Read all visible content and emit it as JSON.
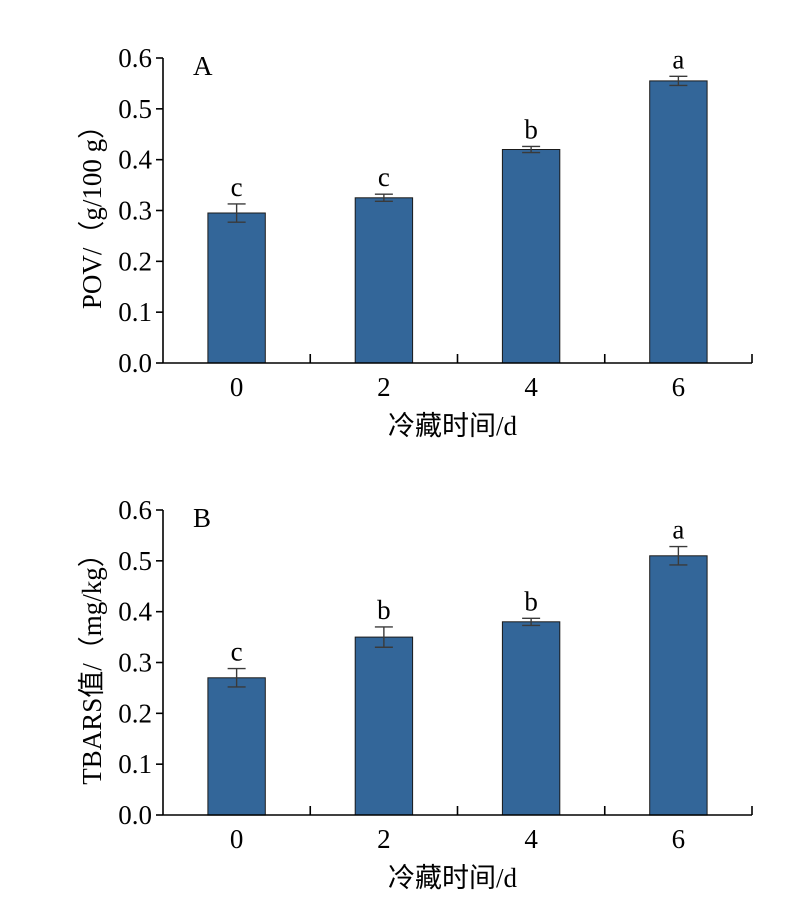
{
  "chart_data": [
    {
      "type": "bar",
      "panel_label": "A",
      "categories": [
        "0",
        "2",
        "4",
        "6"
      ],
      "values": [
        0.295,
        0.325,
        0.42,
        0.555
      ],
      "errors": [
        0.018,
        0.007,
        0.006,
        0.009
      ],
      "significance": [
        "c",
        "c",
        "b",
        "a"
      ],
      "xlabel": "冷藏时间/d",
      "ylabel": "POV/（g/100 g）",
      "ylim": [
        0,
        0.6
      ],
      "yticks": [
        "0.0",
        "0.1",
        "0.2",
        "0.3",
        "0.4",
        "0.5",
        "0.6"
      ],
      "grid": false,
      "bar_color": "#336699"
    },
    {
      "type": "bar",
      "panel_label": "B",
      "categories": [
        "0",
        "2",
        "4",
        "6"
      ],
      "values": [
        0.27,
        0.35,
        0.38,
        0.51
      ],
      "errors": [
        0.018,
        0.02,
        0.007,
        0.018
      ],
      "significance": [
        "c",
        "b",
        "b",
        "a"
      ],
      "xlabel": "冷藏时间/d",
      "ylabel": "TBARS值/（mg/kg）",
      "ylim": [
        0,
        0.6
      ],
      "yticks": [
        "0.0",
        "0.1",
        "0.2",
        "0.3",
        "0.4",
        "0.5",
        "0.6"
      ],
      "grid": false,
      "bar_color": "#336699"
    }
  ]
}
